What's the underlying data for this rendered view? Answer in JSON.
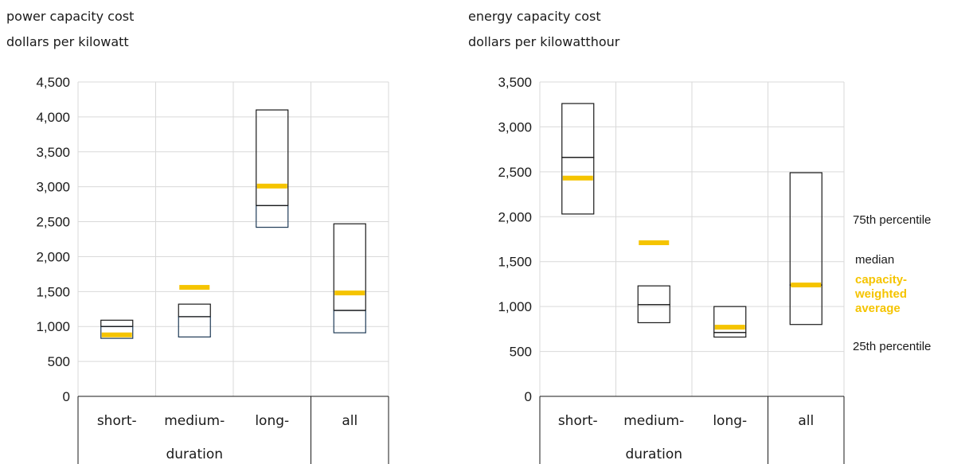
{
  "chart_data": [
    {
      "type": "box",
      "title": "power capacity cost",
      "subtitle": "dollars per kilowatt",
      "ylim": [
        0,
        4500
      ],
      "yticks": [
        0,
        500,
        1000,
        1500,
        2000,
        2500,
        3000,
        3500,
        4000,
        4500
      ],
      "ytick_labels": [
        "0",
        "500",
        "1,000",
        "1,500",
        "2,000",
        "2,500",
        "3,000",
        "3,500",
        "4,000",
        "4,500"
      ],
      "grid": true,
      "categories": [
        "short-",
        "medium-",
        "long-",
        "all"
      ],
      "group_label": "duration",
      "series": [
        {
          "p25": 830,
          "median": 1000,
          "p75": 1090,
          "weighted_avg": 880
        },
        {
          "p25": 850,
          "median": 1140,
          "p75": 1320,
          "weighted_avg": 1560
        },
        {
          "p25": 2420,
          "median": 2730,
          "p75": 4100,
          "weighted_avg": 3010
        },
        {
          "p25": 910,
          "median": 1230,
          "p75": 2470,
          "weighted_avg": 1480
        }
      ]
    },
    {
      "type": "box",
      "title": "energy capacity cost",
      "subtitle": "dollars per kilowatthour",
      "ylim": [
        0,
        3500
      ],
      "yticks": [
        0,
        500,
        1000,
        1500,
        2000,
        2500,
        3000,
        3500
      ],
      "ytick_labels": [
        "0",
        "500",
        "1,000",
        "1,500",
        "2,000",
        "2,500",
        "3,000",
        "3,500"
      ],
      "grid": true,
      "categories": [
        "short-",
        "medium-",
        "long-",
        "all"
      ],
      "group_label": "duration",
      "series": [
        {
          "p25": 2030,
          "median": 2660,
          "p75": 3260,
          "weighted_avg": 2430
        },
        {
          "p25": 820,
          "median": 1020,
          "p75": 1230,
          "weighted_avg": 1710
        },
        {
          "p25": 660,
          "median": 710,
          "p75": 1000,
          "weighted_avg": 770
        },
        {
          "p25": 800,
          "median": 1240,
          "p75": 2490,
          "weighted_avg": 1240
        }
      ]
    }
  ],
  "legend": {
    "p75": "75th percentile",
    "median": "median",
    "avg_line1": "capacity-",
    "avg_line2": "weighted",
    "avg_line3": "average",
    "p25": "25th percentile"
  },
  "colors": {
    "box": "#1a1a1a",
    "weighted_avg": "#f5c400",
    "grid": "#d9d9d9",
    "lower_box": "#1f3b57"
  }
}
